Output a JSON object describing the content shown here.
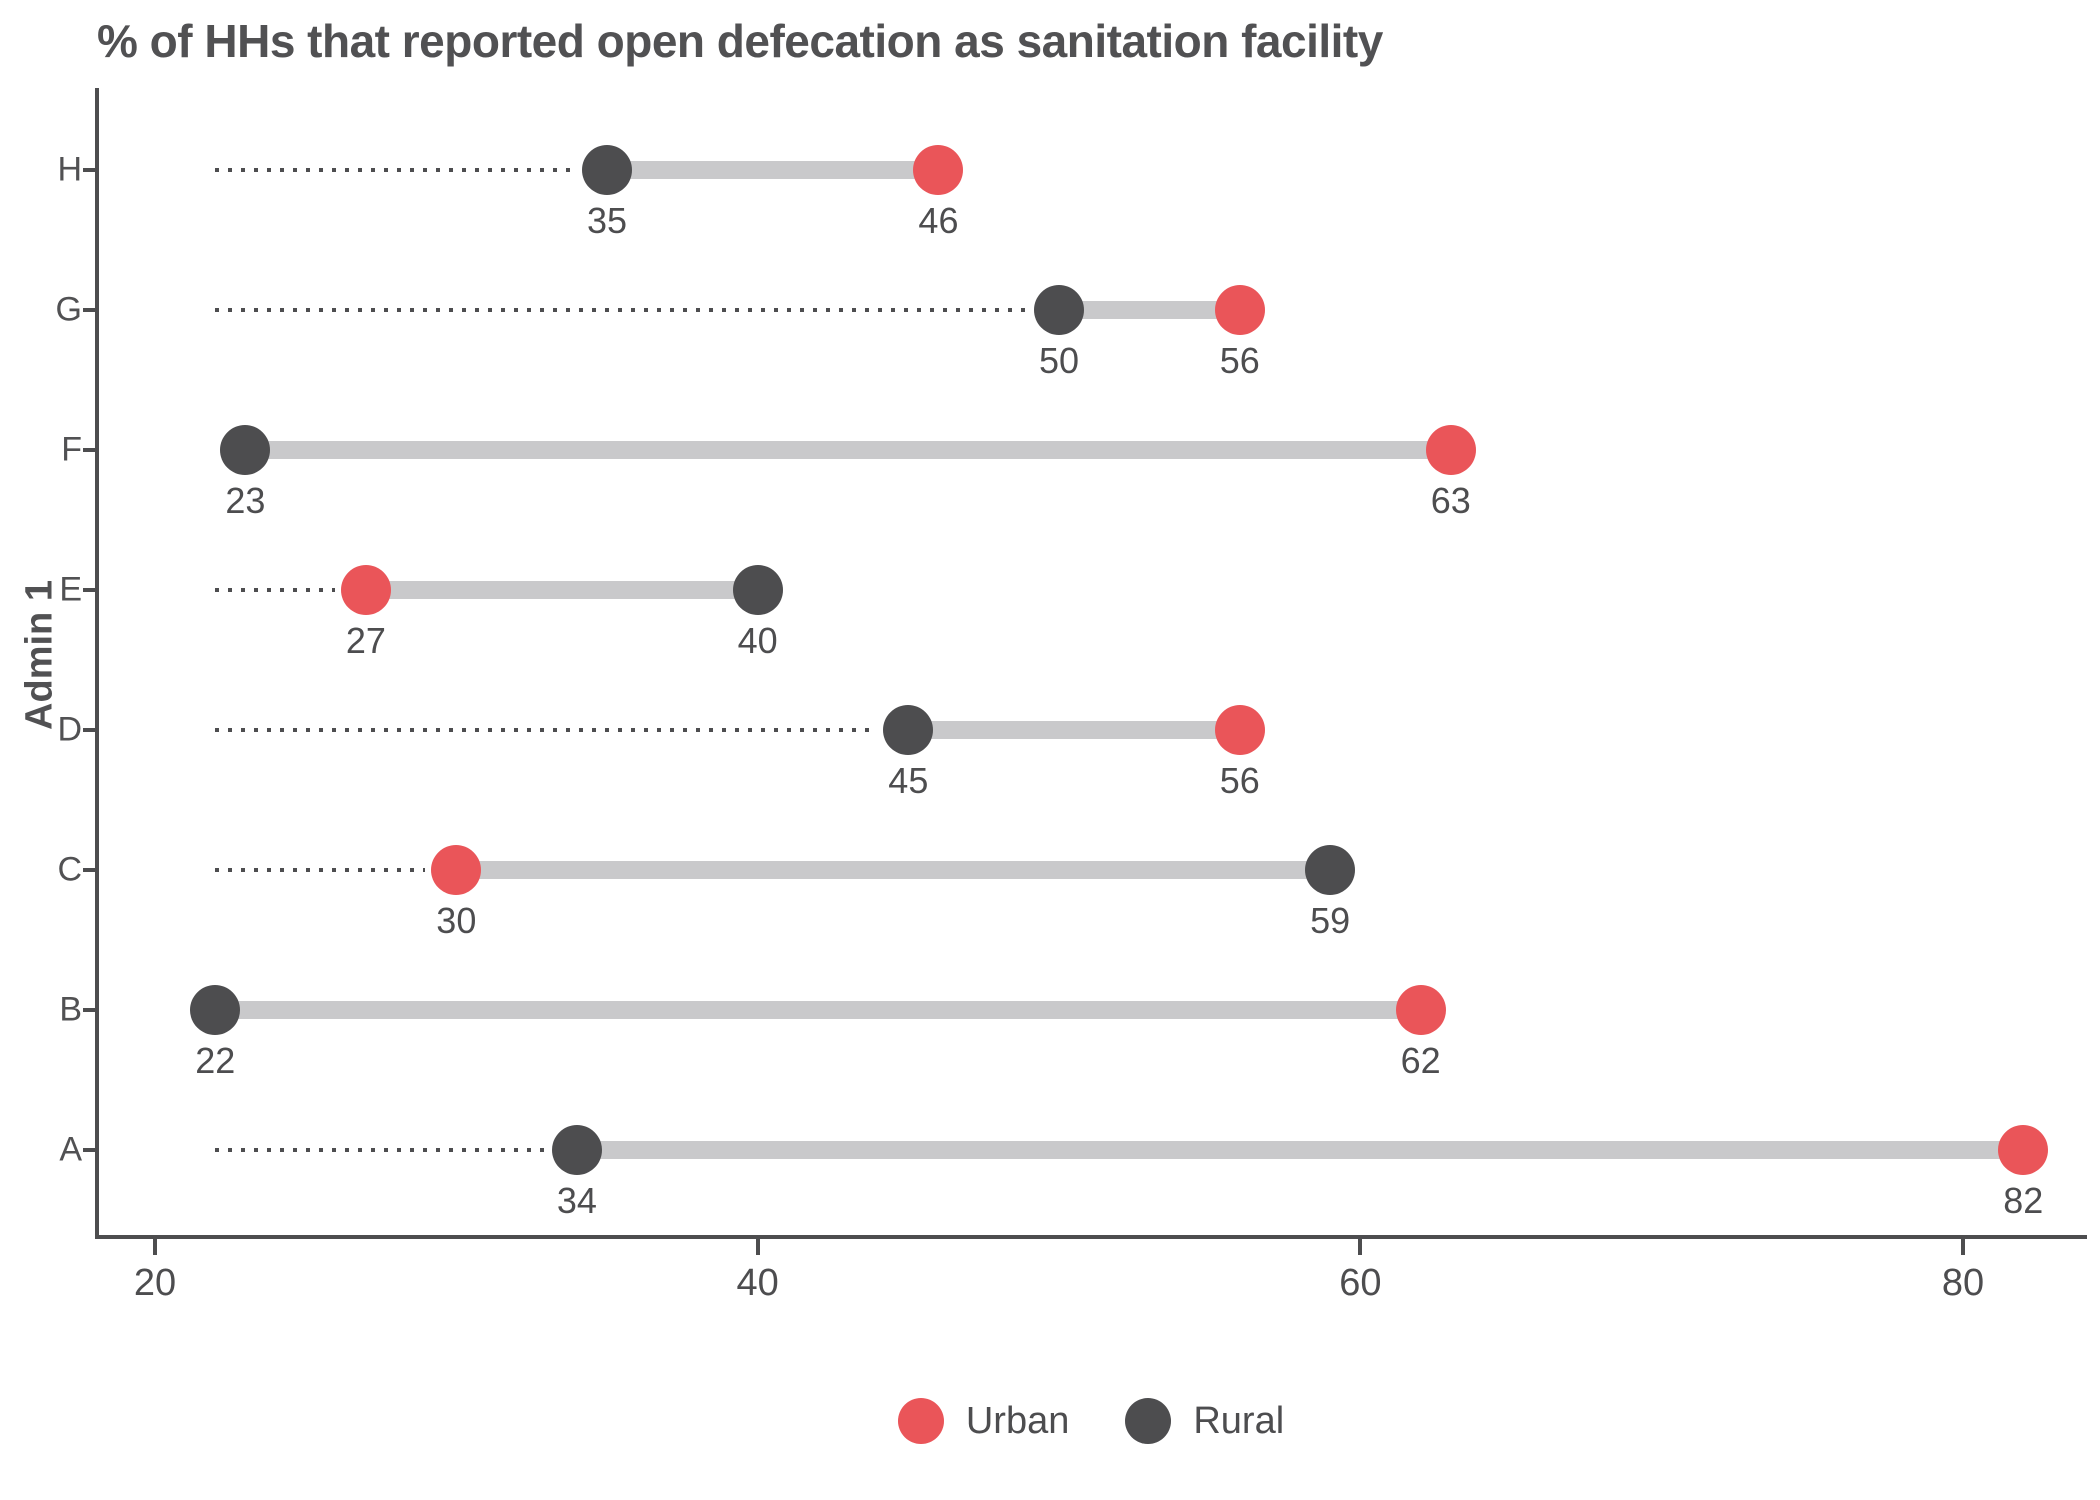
{
  "title": "% of HHs that reported open defecation as sanitation facility",
  "y_axis_title": "Admin 1",
  "colors": {
    "urban": "#EA5559",
    "rural": "#4D4D4F",
    "connector": "#C9C9CB",
    "axis": "#4D4D4F",
    "text": "#4D4D4F",
    "title_text": "#515153"
  },
  "legend": {
    "items": [
      {
        "label": "Urban",
        "color": "#EA5559"
      },
      {
        "label": "Rural",
        "color": "#4D4D4F"
      }
    ],
    "position": "bottom"
  },
  "chart_data": {
    "type": "dumbbell",
    "orientation": "horizontal",
    "title": "% of HHs that reported open defecation as sanitation facility",
    "xlabel": "",
    "ylabel": "Admin 1",
    "categories": [
      "H",
      "G",
      "F",
      "E",
      "D",
      "C",
      "B",
      "A"
    ],
    "series": [
      {
        "name": "Urban",
        "color": "#EA5559",
        "values": [
          46,
          56,
          63,
          27,
          56,
          30,
          62,
          82
        ]
      },
      {
        "name": "Rural",
        "color": "#4D4D4F",
        "values": [
          35,
          50,
          23,
          40,
          45,
          59,
          22,
          34
        ]
      }
    ],
    "point_labels_shown": true,
    "x_ticks": [
      20,
      40,
      60,
      80
    ],
    "xlim": [
      18,
      84
    ],
    "leader_line_start": 22,
    "leader_line_style": "dotted",
    "grid": false,
    "legend_position": "bottom"
  }
}
